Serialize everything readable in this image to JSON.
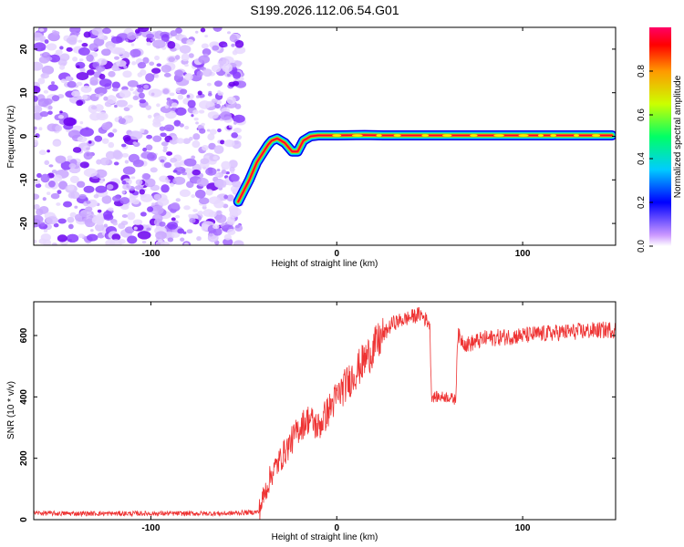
{
  "title": "S199.2026.112.06.54.G01",
  "chart_data": [
    {
      "type": "heatmap",
      "xlabel": "Height of straight line (km)",
      "ylabel": "Frequency (Hz)",
      "xlim": [
        -163,
        150
      ],
      "ylim": [
        -25,
        25
      ],
      "xticks": [
        -100,
        0,
        100
      ],
      "xtick_labels": [
        "-100",
        "0",
        "100"
      ],
      "yticks": [
        -20,
        -10,
        0,
        10,
        20
      ],
      "ytick_labels": [
        "-20",
        "-10",
        "0",
        "10",
        "20"
      ],
      "noise_region_x": [
        -163,
        -51
      ],
      "track": {
        "x": [
          -53,
          -47,
          -43,
          -40,
          -37,
          -35,
          -32,
          -28,
          -24,
          -21,
          -18,
          -14,
          -10,
          0,
          15,
          25,
          50,
          80,
          100,
          148
        ],
        "y": [
          -15,
          -10,
          -6,
          -4,
          -2,
          -1,
          -0.5,
          -1.5,
          -3.5,
          -3.5,
          -1,
          0,
          0.2,
          0.2,
          0.3,
          0.2,
          0.2,
          0.2,
          0.2,
          0.2
        ]
      },
      "colorbar": {
        "label": "Normalized spectral amplitude",
        "range": [
          0,
          1
        ],
        "ticks": [
          0.0,
          0.2,
          0.4,
          0.6,
          0.8
        ],
        "tick_labels": [
          "0.0",
          "0.2",
          "0.4",
          "0.6",
          "0.8"
        ]
      }
    },
    {
      "type": "line",
      "xlabel": "Height of straight line (km)",
      "ylabel": "SNR (10 * v/v)",
      "xlim": [
        -163,
        150
      ],
      "ylim": [
        0,
        710
      ],
      "xticks": [
        -100,
        0,
        100
      ],
      "xtick_labels": [
        "-100",
        "0",
        "100"
      ],
      "yticks": [
        0,
        200,
        400,
        600
      ],
      "ytick_labels": [
        "0",
        "200",
        "400",
        "600"
      ],
      "color": "#ee3333",
      "series": {
        "x": [
          -163,
          -150,
          -100,
          -60,
          -42,
          -38,
          -35,
          -30,
          -25,
          -20,
          -15,
          -10,
          -5,
          0,
          5,
          10,
          15,
          20,
          25,
          30,
          35,
          40,
          45,
          50,
          51,
          55,
          60,
          64,
          65,
          70,
          80,
          100,
          120,
          150
        ],
        "y": [
          22,
          20,
          20,
          20,
          25,
          100,
          150,
          200,
          250,
          300,
          330,
          300,
          350,
          400,
          440,
          480,
          520,
          560,
          600,
          640,
          650,
          660,
          670,
          640,
          400,
          400,
          400,
          390,
          600,
          570,
          590,
          600,
          610,
          620
        ]
      }
    }
  ]
}
